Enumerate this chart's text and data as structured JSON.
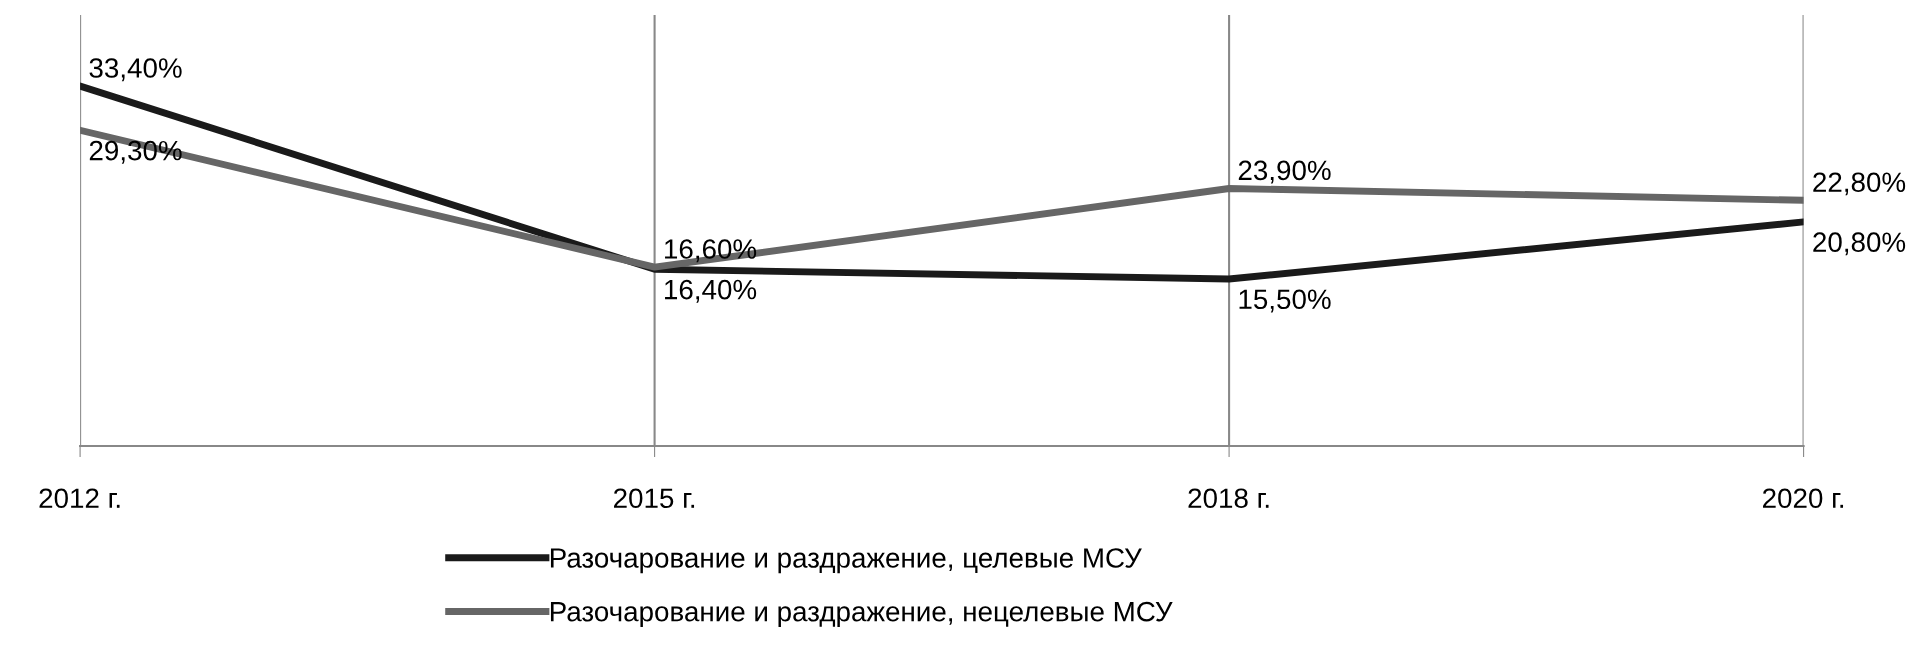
{
  "chart_data": {
    "type": "line",
    "categories": [
      "2012 г.",
      "2015 г.",
      "2018 г.",
      "2020 г."
    ],
    "series": [
      {
        "name": "Разочарование и раздражение, целевые МСУ",
        "color": "#1a1a1a",
        "values": [
          33.4,
          16.4,
          15.5,
          20.8
        ],
        "value_labels": [
          "33,40%",
          "16,40%",
          "15,50%",
          "20,80%"
        ]
      },
      {
        "name": "Разочарование и раздражение, нецелевые МСУ",
        "color": "#666666",
        "values": [
          29.3,
          16.6,
          23.9,
          22.8
        ],
        "value_labels": [
          "29,30%",
          "16,60%",
          "23,90%",
          "22,80%"
        ]
      }
    ],
    "relative": false,
    "ylim": [
      0,
      40
    ],
    "grid": "x",
    "legend": "bottom",
    "marker": "none",
    "line_style": "solid"
  }
}
